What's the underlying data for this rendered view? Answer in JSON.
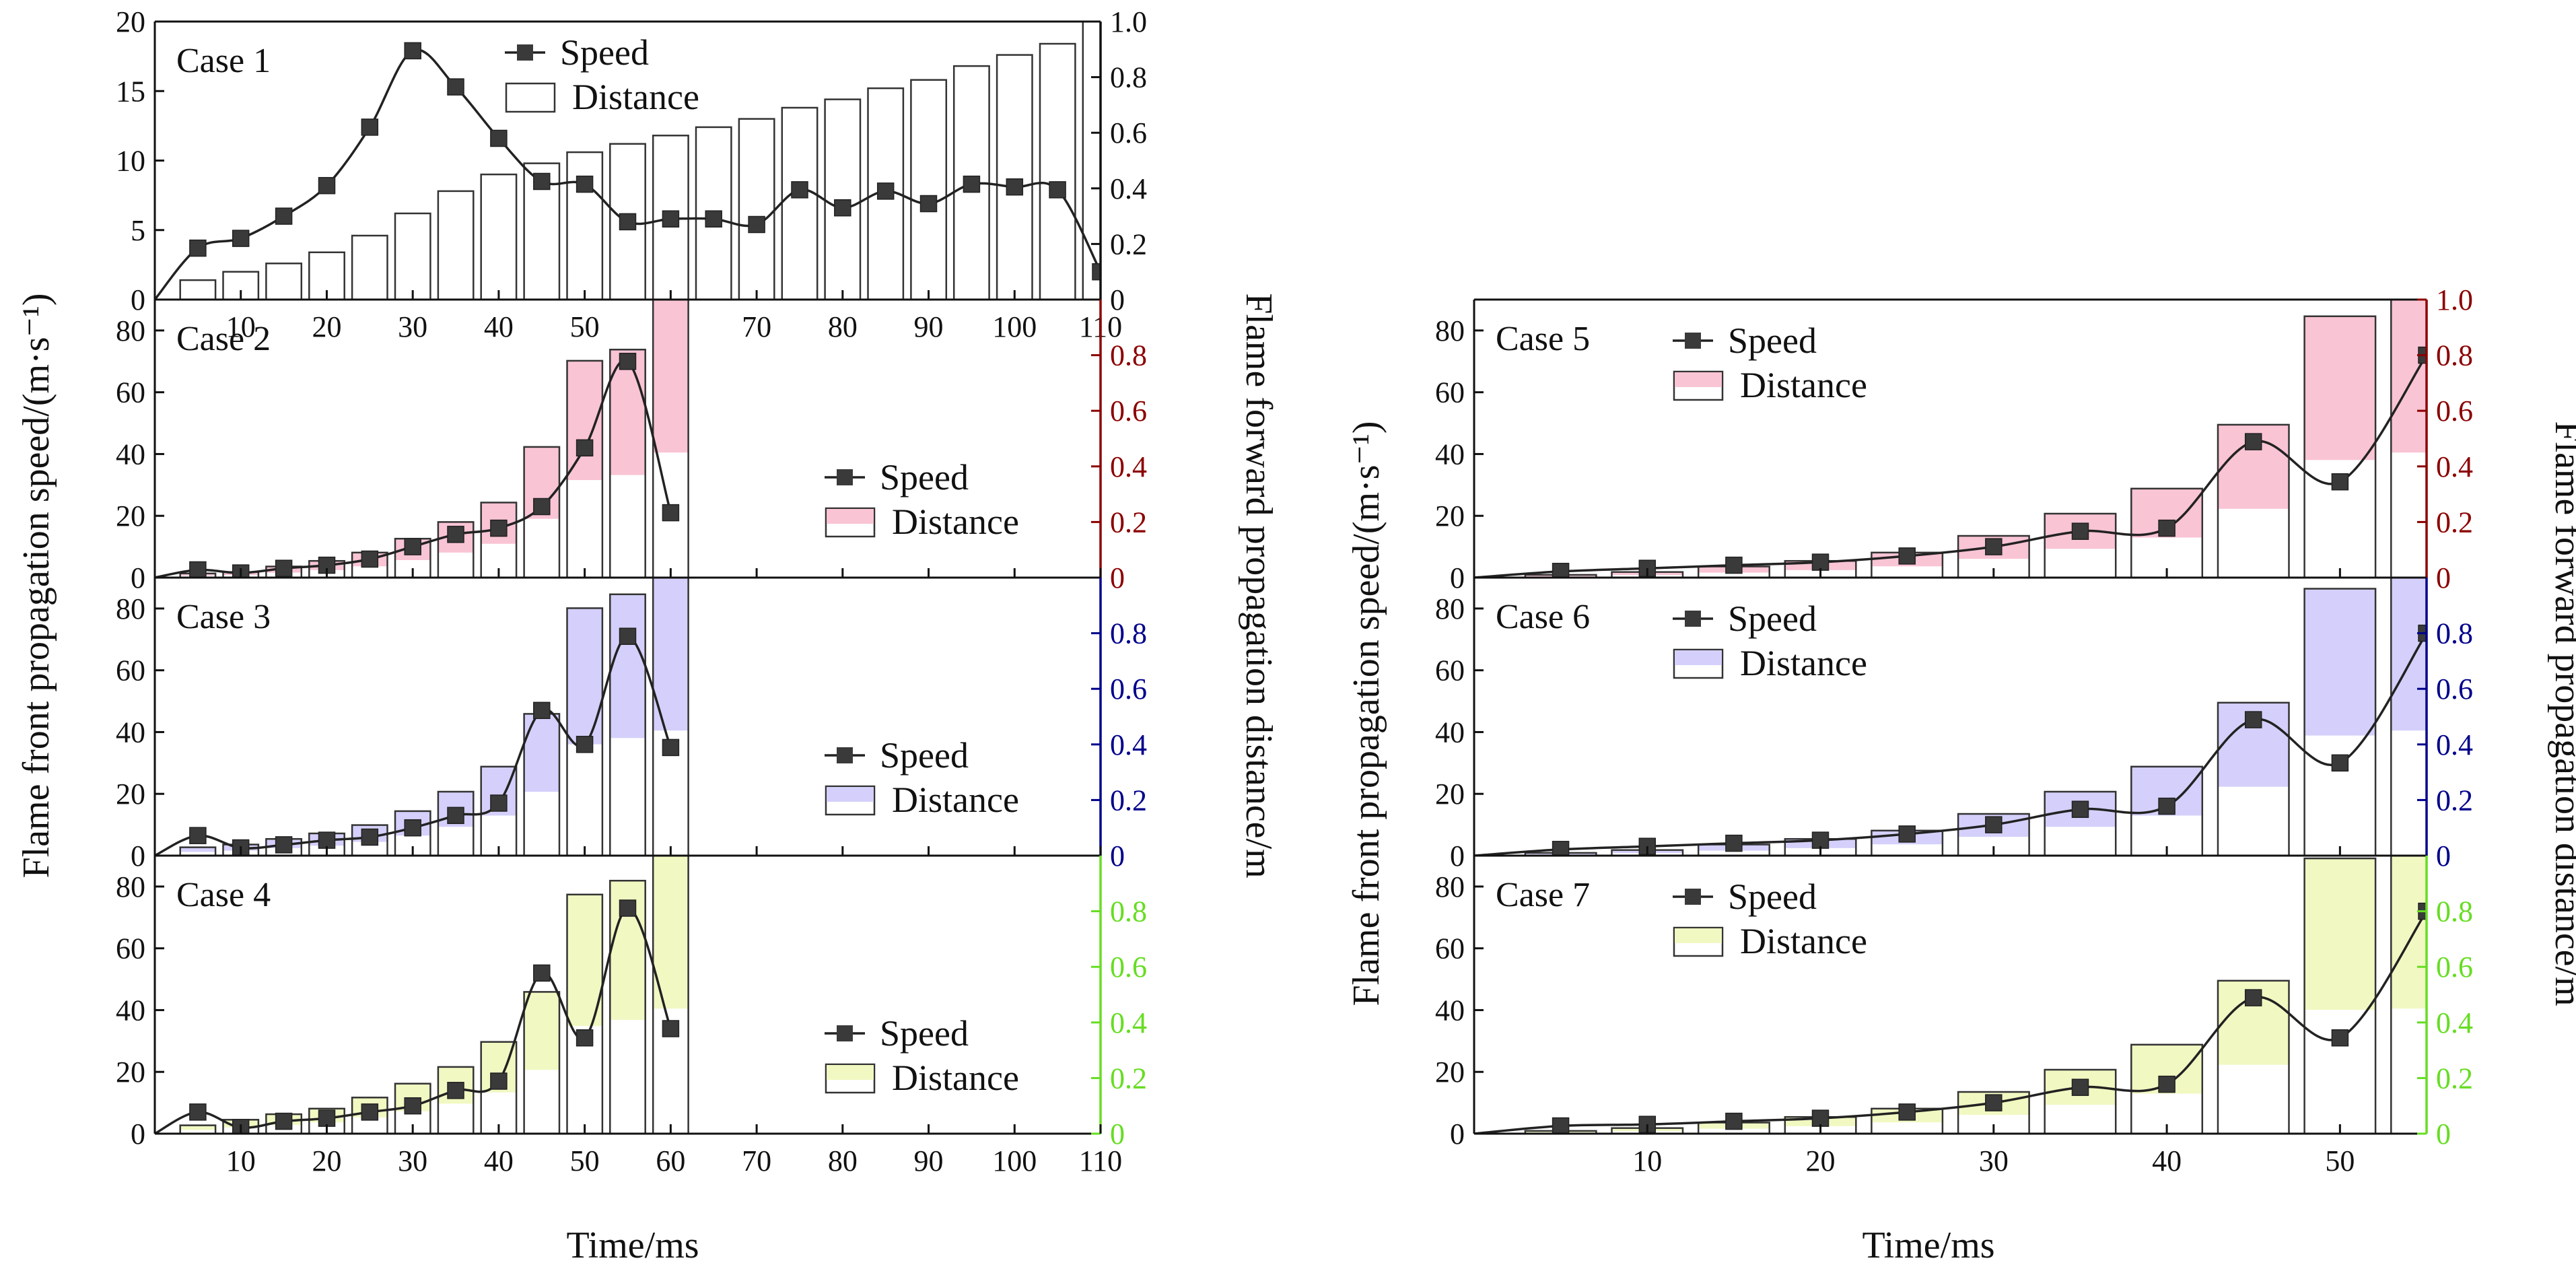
{
  "axes_text": {
    "left_ylabel": "Flame front propagation speed/(m·s⁻¹)",
    "right_ylabel": "Flame forward propagation distance/m",
    "xlabel": "Time/ms"
  },
  "legend_text": {
    "speed": "Speed",
    "distance": "Distance"
  },
  "chart_data": [
    {
      "type": "bar+line",
      "label": "Case 1",
      "column": "left",
      "row": 0,
      "xlim": [
        0,
        110
      ],
      "ylim_speed": [
        0,
        20
      ],
      "ylim_distance": [
        0,
        1.0
      ],
      "speed_ticks": [
        0,
        5,
        10,
        15,
        20
      ],
      "distance_ticks": [
        0,
        0.2,
        0.4,
        0.6,
        0.8,
        1.0
      ],
      "distance_tick_labels": [
        "0",
        "0.2",
        "0.4",
        "0.6",
        "0.8",
        "1.0"
      ],
      "x_ticks": [
        10,
        20,
        30,
        40,
        50,
        60,
        70,
        80,
        90,
        100,
        110
      ],
      "show_x_labels": true,
      "fill_color": "#ffffff",
      "axis_color": "#111111",
      "legend_pos": "top-center",
      "speed": {
        "x": [
          0,
          5,
          10,
          15,
          20,
          25,
          30,
          35,
          40,
          45,
          50,
          55,
          60,
          65,
          70,
          75,
          80,
          85,
          90,
          95,
          100,
          105,
          110
        ],
        "y": [
          0,
          3.7,
          4.4,
          6.0,
          8.2,
          12.4,
          17.9,
          15.3,
          11.6,
          8.5,
          8.3,
          5.6,
          5.8,
          5.8,
          5.4,
          7.9,
          6.6,
          7.8,
          6.9,
          8.3,
          8.1,
          7.9,
          2.0
        ]
      },
      "distance": {
        "x": [
          5,
          10,
          15,
          20,
          25,
          30,
          35,
          40,
          45,
          50,
          55,
          60,
          65,
          70,
          75,
          80,
          85,
          90,
          95,
          100,
          105,
          110
        ],
        "y": [
          0.07,
          0.1,
          0.13,
          0.17,
          0.23,
          0.31,
          0.39,
          0.45,
          0.49,
          0.53,
          0.56,
          0.59,
          0.62,
          0.65,
          0.69,
          0.72,
          0.76,
          0.79,
          0.84,
          0.88,
          0.92,
          1.0
        ]
      }
    },
    {
      "type": "bar+line",
      "label": "Case 2",
      "column": "left",
      "row": 1,
      "xlim": [
        0,
        110
      ],
      "ylim_speed": [
        0,
        90
      ],
      "ylim_distance": [
        0,
        1.0
      ],
      "speed_ticks": [
        0,
        20,
        40,
        60,
        80
      ],
      "distance_ticks": [
        0,
        0.2,
        0.4,
        0.6,
        0.8
      ],
      "distance_tick_labels": [
        "0",
        "0.2",
        "0.4",
        "0.6",
        "0.8"
      ],
      "x_ticks": [
        10,
        20,
        30,
        40,
        50,
        60,
        70,
        80,
        90,
        100,
        110
      ],
      "show_x_labels": false,
      "fill_color": "#f9c4d4",
      "axis_color": "#8b0000",
      "legend_pos": "lower-right",
      "speed": {
        "x": [
          0,
          5,
          10,
          15,
          20,
          25,
          30,
          35,
          40,
          45,
          50,
          55,
          60
        ],
        "y": [
          0,
          2.5,
          1.5,
          3.0,
          4.0,
          6.0,
          10.0,
          14.0,
          16.0,
          23.0,
          42.0,
          70.0,
          21.0
        ]
      },
      "distance": {
        "x": [
          5,
          10,
          15,
          20,
          25,
          30,
          35,
          40,
          45,
          50,
          55,
          60
        ],
        "y": [
          0.015,
          0.02,
          0.04,
          0.06,
          0.09,
          0.14,
          0.2,
          0.27,
          0.47,
          0.78,
          0.82,
          1.0
        ]
      }
    },
    {
      "type": "bar+line",
      "label": "Case 3",
      "column": "left",
      "row": 2,
      "xlim": [
        0,
        110
      ],
      "ylim_speed": [
        0,
        90
      ],
      "ylim_distance": [
        0,
        1.0
      ],
      "speed_ticks": [
        0,
        20,
        40,
        60,
        80
      ],
      "distance_ticks": [
        0,
        0.2,
        0.4,
        0.6,
        0.8
      ],
      "distance_tick_labels": [
        "0",
        "0.2",
        "0.4",
        "0.6",
        "0.8"
      ],
      "x_ticks": [
        10,
        20,
        30,
        40,
        50,
        60,
        70,
        80,
        90,
        100,
        110
      ],
      "show_x_labels": false,
      "fill_color": "#d4d0fb",
      "axis_color": "#00008b",
      "legend_pos": "lower-right",
      "speed": {
        "x": [
          0,
          5,
          10,
          15,
          20,
          25,
          30,
          35,
          40,
          45,
          50,
          55,
          60
        ],
        "y": [
          0,
          6.5,
          2.5,
          3.5,
          5.0,
          6.0,
          9.0,
          13.0,
          17.0,
          47.0,
          36.0,
          71.0,
          35.0
        ]
      },
      "distance": {
        "x": [
          5,
          10,
          15,
          20,
          25,
          30,
          35,
          40,
          45,
          50,
          55,
          60
        ],
        "y": [
          0.03,
          0.04,
          0.06,
          0.08,
          0.11,
          0.16,
          0.23,
          0.32,
          0.51,
          0.89,
          0.94,
          1.0
        ]
      }
    },
    {
      "type": "bar+line",
      "label": "Case 4",
      "column": "left",
      "row": 3,
      "xlim": [
        0,
        110
      ],
      "ylim_speed": [
        0,
        90
      ],
      "ylim_distance": [
        0,
        1.0
      ],
      "speed_ticks": [
        0,
        20,
        40,
        60,
        80
      ],
      "distance_ticks": [
        0,
        0.2,
        0.4,
        0.6,
        0.8
      ],
      "distance_tick_labels": [
        "0",
        "0.2",
        "0.4",
        "0.6",
        "0.8"
      ],
      "x_ticks": [
        10,
        20,
        30,
        40,
        50,
        60,
        70,
        80,
        90,
        100,
        110
      ],
      "show_x_labels": true,
      "fill_color": "#f1f8c2",
      "axis_color": "#66dd22",
      "legend_pos": "lower-right",
      "speed": {
        "x": [
          0,
          5,
          10,
          15,
          20,
          25,
          30,
          35,
          40,
          45,
          50,
          55,
          60
        ],
        "y": [
          0,
          7.0,
          2.0,
          4.0,
          5.0,
          7.0,
          9.0,
          14.0,
          17.0,
          52.0,
          31.0,
          73.0,
          34.0
        ]
      },
      "distance": {
        "x": [
          5,
          10,
          15,
          20,
          25,
          30,
          35,
          40,
          45,
          50,
          55,
          60
        ],
        "y": [
          0.03,
          0.05,
          0.07,
          0.09,
          0.13,
          0.18,
          0.24,
          0.33,
          0.51,
          0.86,
          0.91,
          1.0
        ]
      }
    },
    {
      "type": "bar+line",
      "label": "Case 5",
      "column": "right",
      "row": 0,
      "xlim": [
        0,
        55
      ],
      "ylim_speed": [
        0,
        90
      ],
      "ylim_distance": [
        0,
        1.0
      ],
      "speed_ticks": [
        0,
        20,
        40,
        60,
        80
      ],
      "distance_ticks": [
        0,
        0.2,
        0.4,
        0.6,
        0.8,
        1.0
      ],
      "distance_tick_labels": [
        "0",
        "0.2",
        "0.4",
        "0.6",
        "0.8",
        "1.0"
      ],
      "x_ticks": [
        10,
        20,
        30,
        40,
        50
      ],
      "show_x_labels": false,
      "fill_color": "#f9c4d4",
      "axis_color": "#8b0000",
      "legend_pos": "top-left",
      "speed": {
        "x": [
          0,
          5,
          10,
          15,
          20,
          25,
          30,
          35,
          40,
          45,
          50,
          55
        ],
        "y": [
          0,
          2.0,
          3.0,
          4.0,
          5.0,
          7.0,
          10.0,
          15.0,
          16.0,
          44.0,
          31.0,
          72.0
        ]
      },
      "distance": {
        "x": [
          5,
          10,
          15,
          20,
          25,
          30,
          35,
          40,
          45,
          50,
          55
        ],
        "y": [
          0.01,
          0.02,
          0.04,
          0.06,
          0.09,
          0.15,
          0.23,
          0.32,
          0.55,
          0.94,
          1.0
        ]
      }
    },
    {
      "type": "bar+line",
      "label": "Case 6",
      "column": "right",
      "row": 1,
      "xlim": [
        0,
        55
      ],
      "ylim_speed": [
        0,
        90
      ],
      "ylim_distance": [
        0,
        1.0
      ],
      "speed_ticks": [
        0,
        20,
        40,
        60,
        80
      ],
      "distance_ticks": [
        0,
        0.2,
        0.4,
        0.6,
        0.8
      ],
      "distance_tick_labels": [
        "0",
        "0.2",
        "0.4",
        "0.6",
        "0.8"
      ],
      "x_ticks": [
        10,
        20,
        30,
        40,
        50
      ],
      "show_x_labels": false,
      "fill_color": "#d4d0fb",
      "axis_color": "#00008b",
      "legend_pos": "top-left",
      "speed": {
        "x": [
          0,
          5,
          10,
          15,
          20,
          25,
          30,
          35,
          40,
          45,
          50,
          55
        ],
        "y": [
          0,
          2.0,
          3.0,
          4.0,
          5.0,
          7.0,
          10.0,
          15.0,
          16.0,
          44.0,
          30.0,
          72.0
        ]
      },
      "distance": {
        "x": [
          5,
          10,
          15,
          20,
          25,
          30,
          35,
          40,
          45,
          50,
          55
        ],
        "y": [
          0.01,
          0.02,
          0.04,
          0.06,
          0.09,
          0.15,
          0.23,
          0.32,
          0.55,
          0.96,
          1.0
        ]
      }
    },
    {
      "type": "bar+line",
      "label": "Case 7",
      "column": "right",
      "row": 2,
      "xlim": [
        0,
        55
      ],
      "ylim_speed": [
        0,
        90
      ],
      "ylim_distance": [
        0,
        1.0
      ],
      "speed_ticks": [
        0,
        20,
        40,
        60,
        80
      ],
      "distance_ticks": [
        0,
        0.2,
        0.4,
        0.6,
        0.8
      ],
      "distance_tick_labels": [
        "0",
        "0.2",
        "0.4",
        "0.6",
        "0.8"
      ],
      "x_ticks": [
        10,
        20,
        30,
        40,
        50
      ],
      "show_x_labels": true,
      "fill_color": "#f1f8c2",
      "axis_color": "#66dd22",
      "legend_pos": "top-left",
      "speed": {
        "x": [
          0,
          5,
          10,
          15,
          20,
          25,
          30,
          35,
          40,
          45,
          50,
          55
        ],
        "y": [
          0,
          2.5,
          3.0,
          4.0,
          5.0,
          7.0,
          10.0,
          15.0,
          16.0,
          44.0,
          31.0,
          72.0
        ]
      },
      "distance": {
        "x": [
          5,
          10,
          15,
          20,
          25,
          30,
          35,
          40,
          45,
          50,
          55
        ],
        "y": [
          0.01,
          0.02,
          0.04,
          0.06,
          0.09,
          0.15,
          0.23,
          0.32,
          0.55,
          0.99,
          1.0
        ]
      }
    }
  ]
}
